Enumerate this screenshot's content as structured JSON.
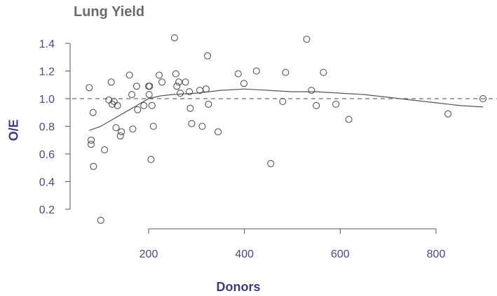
{
  "chart_data": {
    "type": "scatter",
    "title": "Lung Yield",
    "xlabel": "Donors",
    "ylabel": "O/E",
    "xlim": [
      60,
      910
    ],
    "ylim": [
      0.1,
      1.47
    ],
    "x_ticks": [
      200,
      400,
      600,
      800
    ],
    "y_ticks": [
      0.2,
      0.4,
      0.6,
      0.8,
      1.0,
      1.2,
      1.4
    ],
    "x_tick_labels": [
      "200",
      "400",
      "600",
      "800"
    ],
    "y_tick_labels": [
      "0.2",
      "0.4",
      "0.6",
      "0.8",
      "1.0",
      "1.2",
      "1.4"
    ],
    "reference_line": 1.0,
    "grid": false,
    "colors": {
      "axis": "#555555",
      "tick_label": "#4a4a80",
      "point": "#444444",
      "smooth": "#555555"
    },
    "points": [
      [
        76,
        1.08
      ],
      [
        80,
        0.7
      ],
      [
        80,
        0.67
      ],
      [
        84,
        0.9
      ],
      [
        85,
        0.51
      ],
      [
        100,
        0.12
      ],
      [
        108,
        0.63
      ],
      [
        117,
        0.99
      ],
      [
        122,
        1.12
      ],
      [
        124,
        0.96
      ],
      [
        128,
        0.98
      ],
      [
        132,
        0.79
      ],
      [
        135,
        0.95
      ],
      [
        141,
        0.73
      ],
      [
        143,
        0.76
      ],
      [
        160,
        1.17
      ],
      [
        165,
        1.03
      ],
      [
        167,
        0.78
      ],
      [
        175,
        1.09
      ],
      [
        177,
        0.92
      ],
      [
        190,
        0.95
      ],
      [
        200,
        1.09
      ],
      [
        201,
        1.03
      ],
      [
        202,
        1.09
      ],
      [
        205,
        0.56
      ],
      [
        207,
        0.95
      ],
      [
        210,
        0.8
      ],
      [
        222,
        1.17
      ],
      [
        228,
        1.12
      ],
      [
        254,
        1.44
      ],
      [
        257,
        1.18
      ],
      [
        259,
        1.09
      ],
      [
        263,
        1.12
      ],
      [
        266,
        1.04
      ],
      [
        277,
        1.12
      ],
      [
        285,
        1.05
      ],
      [
        287,
        0.93
      ],
      [
        290,
        0.82
      ],
      [
        307,
        1.06
      ],
      [
        312,
        0.8
      ],
      [
        320,
        1.07
      ],
      [
        323,
        1.31
      ],
      [
        325,
        0.96
      ],
      [
        345,
        0.76
      ],
      [
        387,
        1.18
      ],
      [
        399,
        1.11
      ],
      [
        425,
        1.2
      ],
      [
        455,
        0.53
      ],
      [
        480,
        0.98
      ],
      [
        486,
        1.19
      ],
      [
        530,
        1.43
      ],
      [
        540,
        1.06
      ],
      [
        550,
        0.95
      ],
      [
        565,
        1.19
      ],
      [
        591,
        0.96
      ],
      [
        618,
        0.85
      ],
      [
        825,
        0.89
      ],
      [
        898,
        1.0
      ]
    ],
    "smooth": [
      [
        76,
        0.77
      ],
      [
        100,
        0.8
      ],
      [
        125,
        0.85
      ],
      [
        150,
        0.9
      ],
      [
        175,
        0.95
      ],
      [
        200,
        1.0
      ],
      [
        225,
        1.02
      ],
      [
        250,
        1.03
      ],
      [
        300,
        1.04
      ],
      [
        350,
        1.06
      ],
      [
        400,
        1.07
      ],
      [
        450,
        1.06
      ],
      [
        500,
        1.05
      ],
      [
        550,
        1.05
      ],
      [
        600,
        1.04
      ],
      [
        650,
        1.03
      ],
      [
        700,
        1.01
      ],
      [
        750,
        0.99
      ],
      [
        800,
        0.97
      ],
      [
        850,
        0.95
      ],
      [
        898,
        0.94
      ]
    ]
  }
}
